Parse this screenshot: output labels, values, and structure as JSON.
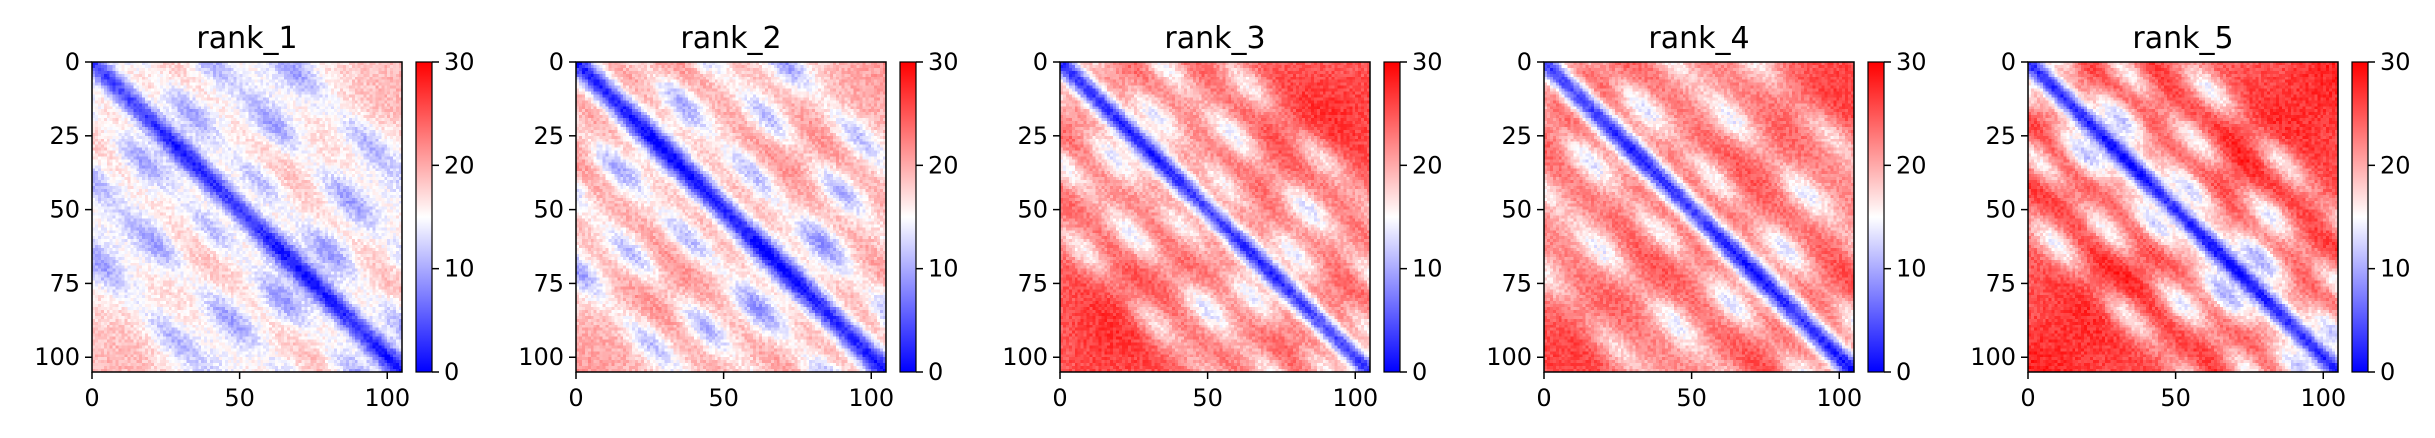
{
  "chart_data": [
    {
      "type": "heatmap",
      "title": "rank_1",
      "size": 105,
      "xlim": [
        0,
        105
      ],
      "ylim": [
        105,
        0
      ],
      "xticks": [
        0,
        50,
        100
      ],
      "yticks": [
        0,
        25,
        50,
        75,
        100
      ],
      "colorbar": {
        "range": [
          0,
          30
        ],
        "ticks": [
          0,
          10,
          20,
          30
        ],
        "colormap": "bwr"
      },
      "diagonal_value": 2,
      "background_value": 17,
      "bands": [
        {
          "offset": 16,
          "value": 9
        },
        {
          "offset": 40,
          "value": 10
        },
        {
          "offset": 66,
          "value": 11
        }
      ]
    },
    {
      "type": "heatmap",
      "title": "rank_2",
      "size": 105,
      "xlim": [
        0,
        105
      ],
      "ylim": [
        105,
        0
      ],
      "xticks": [
        0,
        50,
        100
      ],
      "yticks": [
        0,
        25,
        50,
        75,
        100
      ],
      "colorbar": {
        "range": [
          0,
          30
        ],
        "ticks": [
          0,
          10,
          20,
          30
        ],
        "colormap": "bwr"
      },
      "diagonal_value": 2,
      "background_value": 20,
      "bands": [
        {
          "offset": 22,
          "value": 10
        },
        {
          "offset": 46,
          "value": 10
        },
        {
          "offset": 70,
          "value": 11
        }
      ]
    },
    {
      "type": "heatmap",
      "title": "rank_3",
      "size": 105,
      "xlim": [
        0,
        105
      ],
      "ylim": [
        105,
        0
      ],
      "xticks": [
        0,
        50,
        100
      ],
      "yticks": [
        0,
        25,
        50,
        75,
        100
      ],
      "colorbar": {
        "range": [
          0,
          30
        ],
        "ticks": [
          0,
          10,
          20,
          30
        ],
        "colormap": "bwr"
      },
      "diagonal_value": 2,
      "background_value": 25,
      "bands": [
        {
          "offset": 14,
          "value": 15
        },
        {
          "offset": 34,
          "value": 15
        },
        {
          "offset": 56,
          "value": 16
        }
      ]
    },
    {
      "type": "heatmap",
      "title": "rank_4",
      "size": 105,
      "xlim": [
        0,
        105
      ],
      "ylim": [
        105,
        0
      ],
      "xticks": [
        0,
        50,
        100
      ],
      "yticks": [
        0,
        25,
        50,
        75,
        100
      ],
      "colorbar": {
        "range": [
          0,
          30
        ],
        "ticks": [
          0,
          10,
          20,
          30
        ],
        "colormap": "bwr"
      },
      "diagonal_value": 2,
      "background_value": 24,
      "bands": [
        {
          "offset": 18,
          "value": 13
        },
        {
          "offset": 44,
          "value": 15
        },
        {
          "offset": 72,
          "value": 17
        }
      ]
    },
    {
      "type": "heatmap",
      "title": "rank_5",
      "size": 105,
      "xlim": [
        0,
        105
      ],
      "ylim": [
        105,
        0
      ],
      "xticks": [
        0,
        50,
        100
      ],
      "yticks": [
        0,
        25,
        50,
        75,
        100
      ],
      "colorbar": {
        "range": [
          0,
          30
        ],
        "ticks": [
          0,
          10,
          20,
          30
        ],
        "colormap": "bwr"
      },
      "diagonal_value": 2,
      "background_value": 27,
      "bands": [
        {
          "offset": 12,
          "value": 12
        },
        {
          "offset": 30,
          "value": 14
        },
        {
          "offset": 52,
          "value": 15
        }
      ]
    }
  ]
}
